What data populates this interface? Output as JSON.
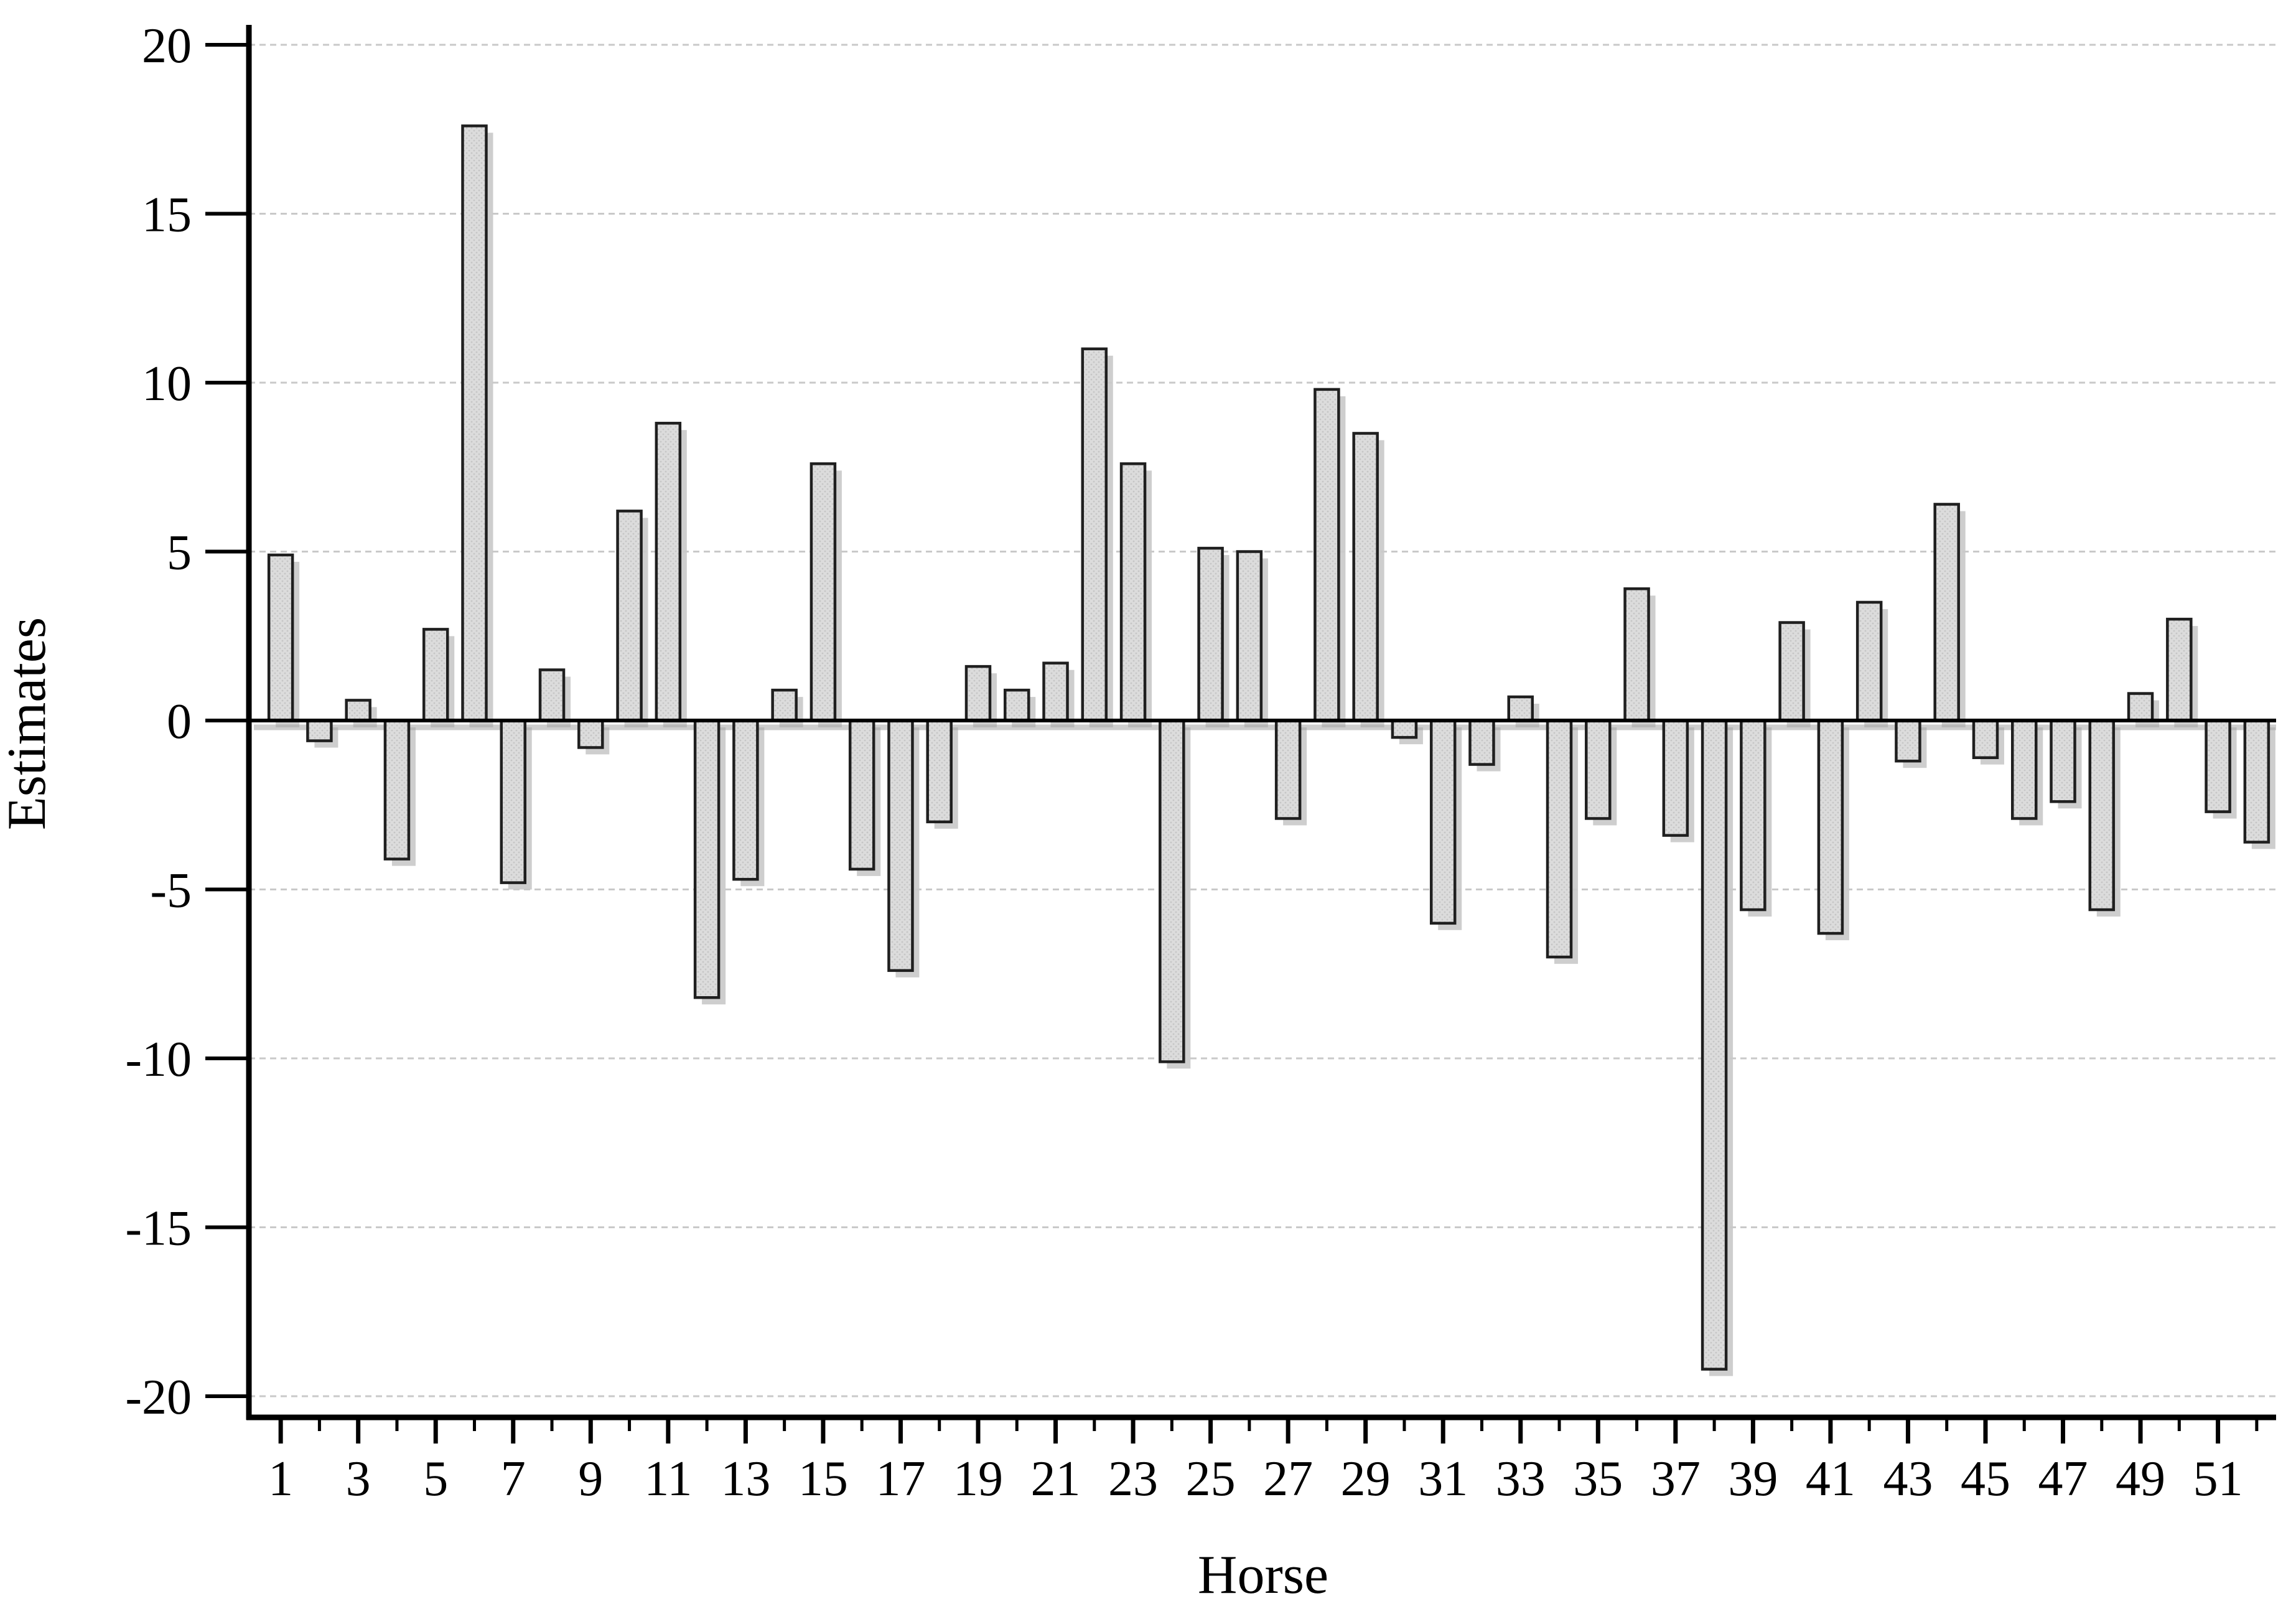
{
  "chart_data": {
    "type": "bar",
    "title": "",
    "xlabel": "Horse",
    "ylabel": "Estimates",
    "ylim": [
      -20,
      20
    ],
    "xlim_categories": [
      1,
      52
    ],
    "grid": true,
    "legend_position": "none",
    "ytick_values": [
      20,
      15,
      10,
      5,
      0,
      -5,
      -10,
      -15,
      -20
    ],
    "xtick_label_values": [
      1,
      3,
      5,
      7,
      9,
      11,
      13,
      15,
      17,
      19,
      21,
      23,
      25,
      27,
      29,
      31,
      33,
      35,
      37,
      39,
      41,
      43,
      45,
      47,
      49,
      51
    ],
    "categories": [
      1,
      2,
      3,
      4,
      5,
      6,
      7,
      8,
      9,
      10,
      11,
      12,
      13,
      14,
      15,
      16,
      17,
      18,
      19,
      20,
      21,
      22,
      23,
      24,
      25,
      26,
      27,
      28,
      29,
      30,
      31,
      32,
      33,
      34,
      35,
      36,
      37,
      38,
      39,
      40,
      41,
      42,
      43,
      44,
      45,
      46,
      47,
      48,
      49,
      50,
      51,
      52
    ],
    "values": [
      4.9,
      -0.6,
      0.6,
      -4.1,
      2.7,
      17.6,
      -4.8,
      1.5,
      -0.8,
      6.2,
      8.8,
      -8.2,
      -4.7,
      0.9,
      7.6,
      -4.4,
      -7.4,
      -3.0,
      1.6,
      0.9,
      1.7,
      11.0,
      7.6,
      -10.1,
      5.1,
      5.0,
      -2.9,
      9.8,
      8.5,
      -0.5,
      -6.0,
      -1.3,
      0.7,
      -7.0,
      -2.9,
      3.9,
      -3.4,
      -19.2,
      -5.6,
      2.9,
      -6.3,
      3.5,
      -1.2,
      6.4,
      -1.1,
      -2.9,
      -2.4,
      -5.6,
      0.8,
      3.0,
      -2.7,
      -3.6
    ],
    "colors": {
      "bar_fill": "#dcdcdc",
      "bar_texture_dot": "#c6c6c6",
      "bar_border": "#1f1f1f",
      "bar_shadow": "#a6a6a6",
      "grid_line": "#c9c9c9",
      "zero_line": "#000000",
      "axis": "#000000",
      "text": "#000000",
      "background": "#ffffff"
    }
  }
}
